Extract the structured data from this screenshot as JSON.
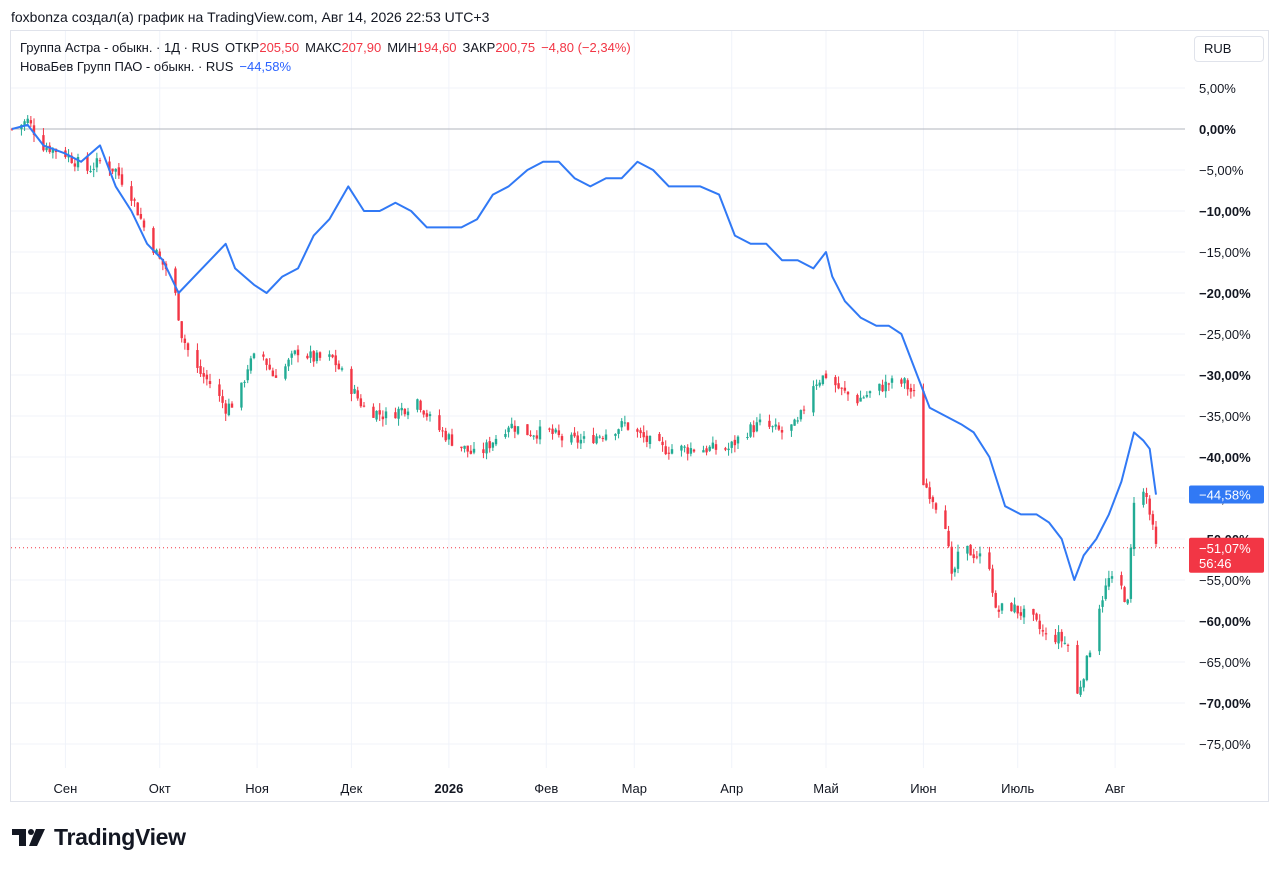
{
  "header": {
    "author_line": "foxbonza создал(а) график на TradingView.com, Авг 14, 2026 22:53 UTC+3"
  },
  "legend": {
    "main": {
      "name": "Группа Астра - обыкн. · 1Д · RUS",
      "open_label": "ОТКР",
      "open_value": "205,50",
      "high_label": "МАКС",
      "high_value": "207,90",
      "low_label": "МИН",
      "low_value": "194,60",
      "close_label": "ЗАКР",
      "close_value": "200,75",
      "change": "−4,80 (−2,34%)"
    },
    "compare": {
      "name": "НоваБев Групп ПАО - обыкн. · RUS",
      "value": "−44,58%"
    }
  },
  "currency_button": "RUB",
  "brand": {
    "wordmark": "TradingView"
  },
  "colors": {
    "up": "#22ab94",
    "down": "#f23645",
    "compare_line": "#3179f5",
    "grid": "#f0f3fa",
    "zero_line": "#b2b5be"
  },
  "chart_data": {
    "type": "line",
    "x_labels": [
      "Сен",
      "Окт",
      "Ноя",
      "Дек",
      "2026",
      "Фев",
      "Мар",
      "Апр",
      "Май",
      "Июн",
      "Июль",
      "Авг"
    ],
    "y_ticks": [
      "5,00%",
      "0,00%",
      "−5,00%",
      "−10,00%",
      "−15,00%",
      "−20,00%",
      "−25,00%",
      "−30,00%",
      "−35,00%",
      "−40,00%",
      "−45,00%",
      "−50,00%",
      "−55,00%",
      "−60,00%",
      "−65,00%",
      "−70,00%",
      "−75,00%"
    ],
    "y_tick_values": [
      5,
      0,
      -5,
      -10,
      -15,
      -20,
      -25,
      -30,
      -35,
      -40,
      -45,
      -50,
      -55,
      -60,
      -65,
      -70,
      -75
    ],
    "ylim": [
      -78,
      8
    ],
    "y_unit": "%",
    "series": [
      {
        "name": "Группа Астра - обыкн.",
        "kind": "candlestick",
        "close_path": [
          [
            "2025-08-15",
            0
          ],
          [
            "2025-08-20",
            1
          ],
          [
            "2025-08-25",
            -2
          ],
          [
            "2025-09-01",
            -3
          ],
          [
            "2025-09-08",
            -5
          ],
          [
            "2025-09-12",
            -4
          ],
          [
            "2025-09-17",
            -5
          ],
          [
            "2025-09-22",
            -8
          ],
          [
            "2025-09-26",
            -12
          ],
          [
            "2025-10-01",
            -16
          ],
          [
            "2025-10-05",
            -18
          ],
          [
            "2025-10-08",
            -25
          ],
          [
            "2025-10-12",
            -29
          ],
          [
            "2025-10-17",
            -31
          ],
          [
            "2025-10-22",
            -34
          ],
          [
            "2025-10-26",
            -33
          ],
          [
            "2025-10-29",
            -29
          ],
          [
            "2025-11-02",
            -27
          ],
          [
            "2025-11-06",
            -30
          ],
          [
            "2025-11-10",
            -29
          ],
          [
            "2025-11-14",
            -27
          ],
          [
            "2025-11-19",
            -28
          ],
          [
            "2025-11-25",
            -28
          ],
          [
            "2025-11-30",
            -31
          ],
          [
            "2025-12-05",
            -34
          ],
          [
            "2025-12-12",
            -35
          ],
          [
            "2025-12-18",
            -34
          ],
          [
            "2025-12-22",
            -33
          ],
          [
            "2025-12-27",
            -36
          ],
          [
            "2026-01-02",
            -38
          ],
          [
            "2026-01-06",
            -39
          ],
          [
            "2026-01-10",
            -40
          ],
          [
            "2026-01-15",
            -38
          ],
          [
            "2026-01-20",
            -36
          ],
          [
            "2026-01-26",
            -37
          ],
          [
            "2026-02-02",
            -37
          ],
          [
            "2026-02-07",
            -38
          ],
          [
            "2026-02-13",
            -38
          ],
          [
            "2026-02-20",
            -37
          ],
          [
            "2026-02-26",
            -36
          ],
          [
            "2026-03-05",
            -38
          ],
          [
            "2026-03-10",
            -39
          ],
          [
            "2026-03-17",
            -39
          ],
          [
            "2026-03-24",
            -39
          ],
          [
            "2026-03-31",
            -39
          ],
          [
            "2026-04-05",
            -37
          ],
          [
            "2026-04-10",
            -36
          ],
          [
            "2026-04-17",
            -37
          ],
          [
            "2026-04-22",
            -36
          ],
          [
            "2026-04-27",
            -31
          ],
          [
            "2026-05-01",
            -30
          ],
          [
            "2026-05-06",
            -32
          ],
          [
            "2026-05-11",
            -33
          ],
          [
            "2026-05-16",
            -32
          ],
          [
            "2026-05-21",
            -31
          ],
          [
            "2026-05-26",
            -31
          ],
          [
            "2026-05-30",
            -33
          ],
          [
            "2026-06-01",
            -43
          ],
          [
            "2026-06-04",
            -45
          ],
          [
            "2026-06-08",
            -48
          ],
          [
            "2026-06-10",
            -55
          ],
          [
            "2026-06-13",
            -51
          ],
          [
            "2026-06-18",
            -52
          ],
          [
            "2026-06-22",
            -53
          ],
          [
            "2026-06-24",
            -59
          ],
          [
            "2026-06-28",
            -58
          ],
          [
            "2026-07-02",
            -59
          ],
          [
            "2026-07-06",
            -60
          ],
          [
            "2026-07-10",
            -62
          ],
          [
            "2026-07-14",
            -62
          ],
          [
            "2026-07-17",
            -63
          ],
          [
            "2026-07-20",
            -69
          ],
          [
            "2026-07-23",
            -65
          ],
          [
            "2026-07-27",
            -58
          ],
          [
            "2026-07-30",
            -55
          ],
          [
            "2026-08-03",
            -56
          ],
          [
            "2026-08-05",
            -58
          ],
          [
            "2026-08-07",
            -45
          ],
          [
            "2026-08-09",
            -44
          ],
          [
            "2026-08-11",
            -45
          ],
          [
            "2026-08-13",
            -49
          ],
          [
            "2026-08-14",
            -51.07
          ]
        ],
        "last_value": "−51,07%",
        "countdown": "56:46"
      },
      {
        "name": "НоваБев Групп ПАО - обыкн.",
        "kind": "line",
        "points": [
          [
            "2025-08-15",
            0
          ],
          [
            "2025-08-20",
            0.5
          ],
          [
            "2025-08-25",
            -2
          ],
          [
            "2025-09-01",
            -3
          ],
          [
            "2025-09-06",
            -4
          ],
          [
            "2025-09-12",
            -2
          ],
          [
            "2025-09-17",
            -7
          ],
          [
            "2025-09-22",
            -10
          ],
          [
            "2025-09-27",
            -14
          ],
          [
            "2025-10-02",
            -16
          ],
          [
            "2025-10-07",
            -20
          ],
          [
            "2025-10-12",
            -18
          ],
          [
            "2025-10-17",
            -16
          ],
          [
            "2025-10-22",
            -14
          ],
          [
            "2025-10-25",
            -17
          ],
          [
            "2025-10-31",
            -19
          ],
          [
            "2025-11-04",
            -20
          ],
          [
            "2025-11-09",
            -18
          ],
          [
            "2025-11-14",
            -17
          ],
          [
            "2025-11-19",
            -13
          ],
          [
            "2025-11-24",
            -11
          ],
          [
            "2025-11-30",
            -7
          ],
          [
            "2025-12-05",
            -10
          ],
          [
            "2025-12-10",
            -10
          ],
          [
            "2025-12-15",
            -9
          ],
          [
            "2025-12-20",
            -10
          ],
          [
            "2025-12-25",
            -12
          ],
          [
            "2025-12-30",
            -12
          ],
          [
            "2026-01-05",
            -12
          ],
          [
            "2026-01-10",
            -11
          ],
          [
            "2026-01-15",
            -8
          ],
          [
            "2026-01-20",
            -7
          ],
          [
            "2026-01-26",
            -5
          ],
          [
            "2026-01-31",
            -4
          ],
          [
            "2026-02-05",
            -4
          ],
          [
            "2026-02-10",
            -6
          ],
          [
            "2026-02-15",
            -7
          ],
          [
            "2026-02-20",
            -6
          ],
          [
            "2026-02-25",
            -6
          ],
          [
            "2026-03-02",
            -4
          ],
          [
            "2026-03-07",
            -5
          ],
          [
            "2026-03-12",
            -7
          ],
          [
            "2026-03-17",
            -7
          ],
          [
            "2026-03-22",
            -7
          ],
          [
            "2026-03-28",
            -8
          ],
          [
            "2026-04-02",
            -13
          ],
          [
            "2026-04-07",
            -14
          ],
          [
            "2026-04-12",
            -14
          ],
          [
            "2026-04-17",
            -16
          ],
          [
            "2026-04-22",
            -16
          ],
          [
            "2026-04-27",
            -17
          ],
          [
            "2026-05-01",
            -15
          ],
          [
            "2026-05-03",
            -18
          ],
          [
            "2026-05-07",
            -21
          ],
          [
            "2026-05-12",
            -23
          ],
          [
            "2026-05-17",
            -24
          ],
          [
            "2026-05-21",
            -24
          ],
          [
            "2026-05-25",
            -25
          ],
          [
            "2026-05-30",
            -30
          ],
          [
            "2026-06-03",
            -34
          ],
          [
            "2026-06-08",
            -35
          ],
          [
            "2026-06-13",
            -36
          ],
          [
            "2026-06-17",
            -37
          ],
          [
            "2026-06-22",
            -40
          ],
          [
            "2026-06-27",
            -46
          ],
          [
            "2026-07-02",
            -47
          ],
          [
            "2026-07-07",
            -47
          ],
          [
            "2026-07-11",
            -48
          ],
          [
            "2026-07-15",
            -50
          ],
          [
            "2026-07-19",
            -55
          ],
          [
            "2026-07-22",
            -52
          ],
          [
            "2026-07-26",
            -50
          ],
          [
            "2026-07-30",
            -47
          ],
          [
            "2026-08-03",
            -43
          ],
          [
            "2026-08-07",
            -37
          ],
          [
            "2026-08-10",
            -38
          ],
          [
            "2026-08-12",
            -39
          ],
          [
            "2026-08-14",
            -44.58
          ]
        ],
        "last_value": "−44,58%"
      }
    ]
  }
}
